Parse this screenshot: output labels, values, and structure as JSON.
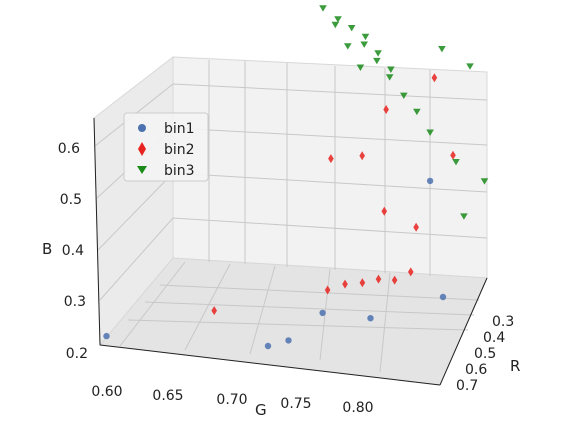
{
  "chart_data": {
    "type": "scatter",
    "projection": "3d",
    "xlabel": "R",
    "ylabel": "G",
    "zlabel": "B",
    "x_ticks": [
      "0.3",
      "0.4",
      "0.5",
      "0.6",
      "0.7"
    ],
    "y_ticks": [
      "0.60",
      "0.65",
      "0.70",
      "0.75",
      "0.80"
    ],
    "z_ticks": [
      "0.2",
      "0.3",
      "0.4",
      "0.5",
      "0.6"
    ],
    "legend_position": "upper-left",
    "grid": true,
    "series": [
      {
        "name": "bin1",
        "marker": "circle",
        "color": "#4c72b0",
        "points": [
          [
            0.68,
            0.6,
            0.21
          ],
          [
            0.7,
            0.7,
            0.22
          ],
          [
            0.67,
            0.71,
            0.22
          ],
          [
            0.66,
            0.73,
            0.28
          ],
          [
            0.67,
            0.76,
            0.28
          ],
          [
            0.6,
            0.8,
            0.3
          ],
          [
            0.42,
            0.78,
            0.45
          ]
        ]
      },
      {
        "name": "bin2",
        "marker": "diamond",
        "color": "#e8231f",
        "points": [
          [
            0.62,
            0.66,
            0.25
          ],
          [
            0.62,
            0.73,
            0.31
          ],
          [
            0.61,
            0.74,
            0.32
          ],
          [
            0.6,
            0.75,
            0.32
          ],
          [
            0.6,
            0.76,
            0.33
          ],
          [
            0.6,
            0.77,
            0.33
          ],
          [
            0.6,
            0.78,
            0.35
          ],
          [
            0.55,
            0.78,
            0.42
          ],
          [
            0.55,
            0.76,
            0.45
          ],
          [
            0.47,
            0.74,
            0.52
          ],
          [
            0.47,
            0.72,
            0.51
          ],
          [
            0.4,
            0.75,
            0.58
          ],
          [
            0.38,
            0.78,
            0.64
          ],
          [
            0.5,
            0.8,
            0.55
          ]
        ]
      },
      {
        "name": "bin3",
        "marker": "triangle-down",
        "color": "#1a8a1a",
        "points": [
          [
            0.3,
            0.7,
            0.72
          ],
          [
            0.3,
            0.71,
            0.7
          ],
          [
            0.31,
            0.72,
            0.69
          ],
          [
            0.32,
            0.73,
            0.68
          ],
          [
            0.33,
            0.73,
            0.67
          ],
          [
            0.34,
            0.74,
            0.66
          ],
          [
            0.35,
            0.74,
            0.65
          ],
          [
            0.36,
            0.75,
            0.64
          ],
          [
            0.37,
            0.75,
            0.63
          ],
          [
            0.38,
            0.76,
            0.6
          ],
          [
            0.4,
            0.77,
            0.58
          ],
          [
            0.42,
            0.78,
            0.55
          ],
          [
            0.31,
            0.78,
            0.66
          ],
          [
            0.33,
            0.8,
            0.64
          ],
          [
            0.47,
            0.8,
            0.52
          ],
          [
            0.55,
            0.81,
            0.45
          ],
          [
            0.5,
            0.82,
            0.5
          ],
          [
            0.32,
            0.71,
            0.7
          ],
          [
            0.34,
            0.72,
            0.67
          ],
          [
            0.36,
            0.73,
            0.64
          ]
        ]
      }
    ]
  }
}
